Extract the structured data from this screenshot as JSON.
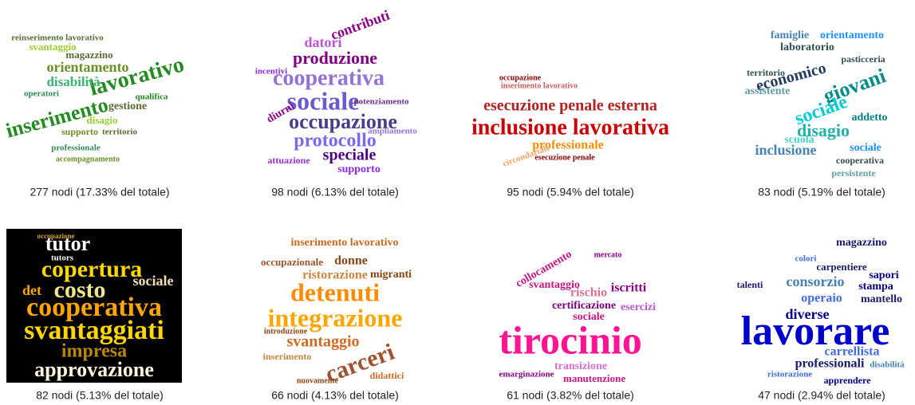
{
  "panels": [
    {
      "words": [
        "reinserimento lavorativo",
        "orientamento",
        "lavorativo",
        "disabilità",
        "inserimento",
        "magazzino",
        "svantaggio",
        "gestione",
        "supporto",
        "professionale",
        "accompagnamento",
        "disagio",
        "operatori",
        "qualifica",
        "territorio"
      ],
      "caption": "277 nodi (17.33% del totale)"
    },
    {
      "words": [
        "contributi",
        "datori",
        "produzione",
        "cooperativa",
        "sociale",
        "occupazione",
        "protocollo",
        "speciale",
        "supporto",
        "attuazione",
        "diurni",
        "incentivi",
        "potenziamento",
        "ampliamento"
      ],
      "caption": "98 nodi (6.13% del totale)"
    },
    {
      "words": [
        "esecuzione penale esterna",
        "inclusione lavorativa",
        "professionale",
        "occupazione",
        "inserimento lavorativo",
        "circondariale",
        "esecuzione penale"
      ],
      "caption": "95 nodi (5.94% del totale)"
    },
    {
      "words": [
        "famiglie",
        "orientamento",
        "laboratorio",
        "economico",
        "giovani",
        "sociale",
        "disagio",
        "inclusione",
        "sociale",
        "assistente",
        "territorio",
        "cooperativa",
        "addetto",
        "pasticceria",
        "scuola",
        "persistente"
      ],
      "caption": "83 nodi (5.19% del totale)"
    },
    {
      "words": [
        "tutor",
        "tutors",
        "copertura",
        "costo",
        "sociale",
        "cooperativa",
        "svantaggiati",
        "impresa",
        "approvazione",
        "occupazione",
        "det"
      ],
      "caption": "82 nodi (5.13% del totale)"
    },
    {
      "words": [
        "inserimento lavorativo",
        "ristorazione",
        "donne",
        "occupazionale",
        "migranti",
        "detenuti",
        "integrazione",
        "svantaggio",
        "carceri",
        "introduzione",
        "inserimento",
        "didattici",
        "nuovamente"
      ],
      "caption": "66 nodi (4.13% del totale)"
    },
    {
      "words": [
        "collocamento",
        "svantaggio",
        "rischio",
        "iscritti",
        "certificazione",
        "sociale",
        "esercizi",
        "tirocinio",
        "transizione",
        "manutenzione",
        "emarginazione",
        "mercato"
      ],
      "caption": "61 nodi (3.82% del totale)"
    },
    {
      "words": [
        "magazzino",
        "colori",
        "carpentiere",
        "sapori",
        "consorzio",
        "stampa",
        "operaio",
        "mantello",
        "talenti",
        "diverse",
        "lavorare",
        "carrellista",
        "professionali",
        "disabilità",
        "ristorazione",
        "apprendere"
      ],
      "caption": "47 nodi (2.94% del totale)"
    }
  ]
}
